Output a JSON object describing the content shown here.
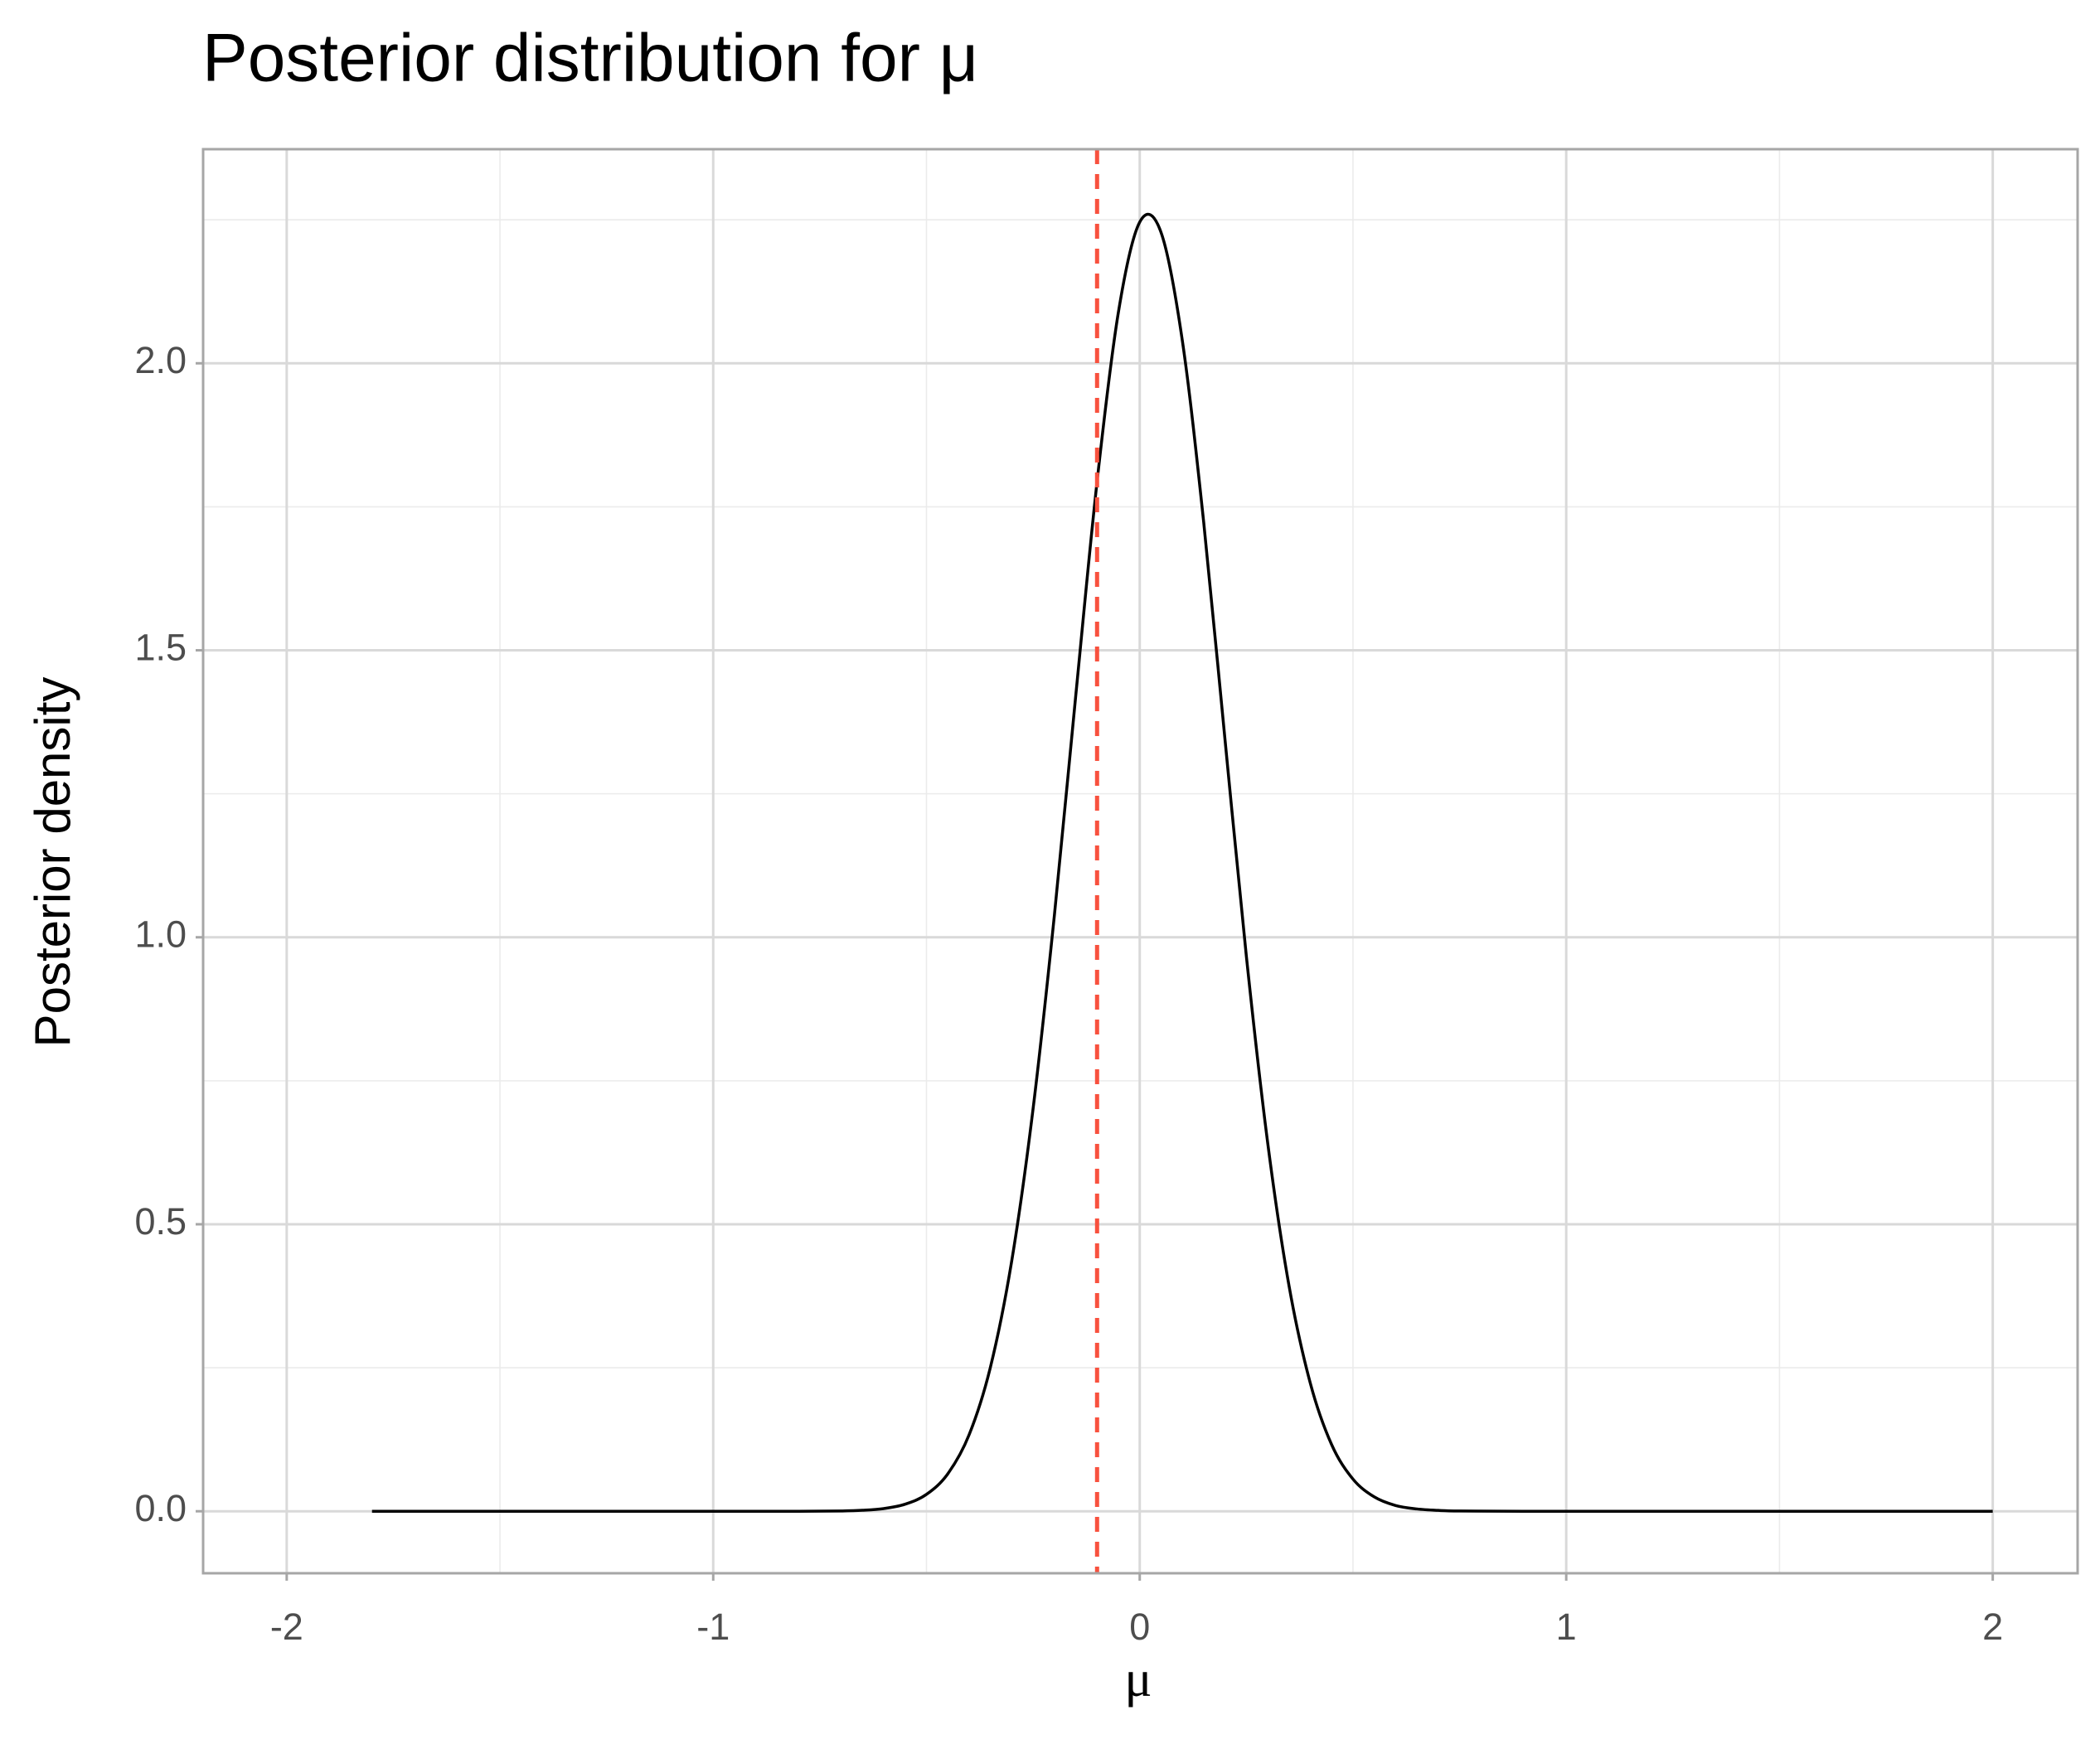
{
  "chart_data": {
    "type": "line",
    "title": "Posterior distribution for  μ",
    "x_label": "μ",
    "y_label": "Posterior density",
    "series": [
      {
        "color": "#000000",
        "x": [
          -1.8,
          -1.4,
          -1.0,
          -0.8,
          -0.7,
          -0.65,
          -0.6,
          -0.55,
          -0.5,
          -0.45,
          -0.4,
          -0.35,
          -0.3,
          -0.25,
          -0.2,
          -0.15,
          -0.1,
          -0.05,
          0,
          0.05,
          0.1,
          0.15,
          0.2,
          0.25,
          0.3,
          0.35,
          0.4,
          0.45,
          0.5,
          0.55,
          0.6,
          0.65,
          0.7,
          0.75,
          0.9,
          1.2,
          1.6,
          2.0
        ],
        "values": [
          0,
          0,
          0,
          0,
          0.0005,
          0.0017,
          0.0047,
          0.0123,
          0.0294,
          0.0652,
          0.1333,
          0.2512,
          0.4367,
          0.7015,
          1.039,
          1.421,
          1.794,
          2.089,
          2.246,
          2.228,
          2.039,
          1.723,
          1.344,
          0.967,
          0.642,
          0.393,
          0.223,
          0.116,
          0.056,
          0.025,
          0.01,
          0.004,
          0.0015,
          0.0005,
          0,
          0,
          0,
          0
        ]
      }
    ],
    "vline": {
      "x": -0.1,
      "color": "#f8513e"
    },
    "xlim": [
      -2.196,
      2.199
    ],
    "ylim": [
      -0.108,
      2.373
    ],
    "xticks": [
      -2,
      -1,
      0,
      1,
      2
    ],
    "xminor": [
      -1.5,
      -0.5,
      0.5,
      1.5
    ],
    "yticks": [
      {
        "value": 0,
        "label": "0.0"
      },
      0.5,
      {
        "value": 1,
        "label": "1.0"
      },
      1.5,
      {
        "value": 2,
        "label": "2.0"
      }
    ],
    "yminor": [
      0.25,
      0.75,
      1.25,
      1.75,
      2.25
    ],
    "grid": true
  }
}
